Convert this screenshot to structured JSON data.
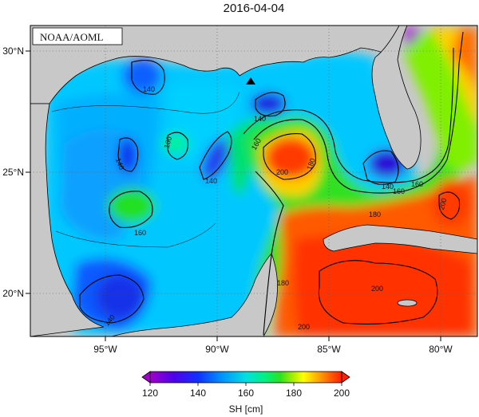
{
  "title": "2016-04-04",
  "source_badge": "NOAA/AOML",
  "x_ticks": [
    "95°W",
    "90°W",
    "85°W",
    "80°W"
  ],
  "y_ticks": [
    "30°N",
    "25°N",
    "20°N"
  ],
  "contour_labels": [
    "140",
    "140",
    "160",
    "140",
    "160",
    "140",
    "160",
    "160",
    "180",
    "200",
    "180",
    "140",
    "160",
    "180",
    "200",
    "200",
    "200",
    "140"
  ],
  "colorbar": {
    "label": "SH [cm]",
    "ticks": [
      "120",
      "140",
      "160",
      "180",
      "200"
    ],
    "min": 120,
    "max": 200,
    "colors": [
      "#a000c8",
      "#6a00e0",
      "#2020ff",
      "#0080ff",
      "#00d8ff",
      "#00f0a0",
      "#20e020",
      "#a0f000",
      "#ffff00",
      "#ffc000",
      "#ff7000",
      "#ff2000"
    ]
  },
  "colors": {
    "land": "#c8c8c8",
    "coast": "#000000",
    "grid": "#555555",
    "marker": "#000000"
  },
  "map_extent": {
    "lon": [
      -98,
      -78
    ],
    "lat": [
      18,
      31
    ]
  },
  "marker": "triangle-up"
}
